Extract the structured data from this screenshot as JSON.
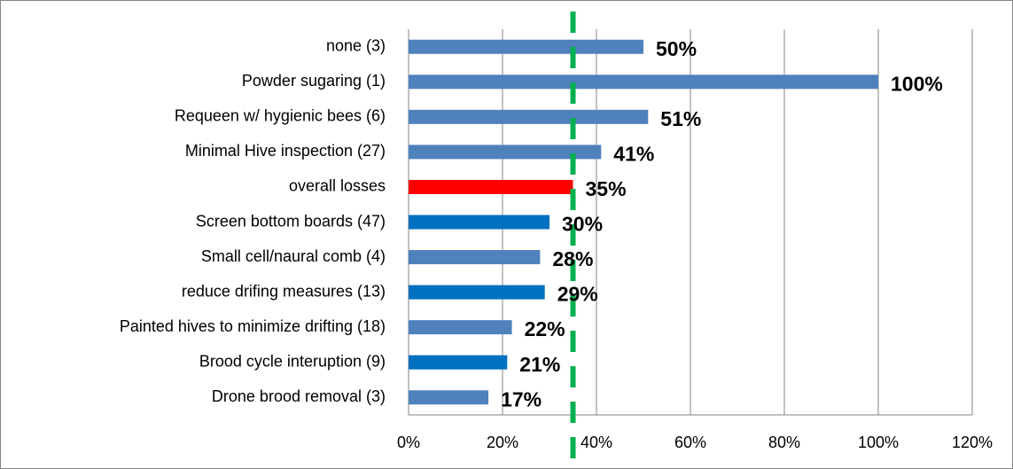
{
  "chart_data": {
    "type": "bar",
    "orientation": "horizontal",
    "categories": [
      "none (3)",
      "Powder sugaring (1)",
      "Requeen w/ hygienic bees (6)",
      "Minimal Hive inspection (27)",
      "overall losses",
      "Screen bottom boards (47)",
      "Small cell/naural comb (4)",
      "reduce drifing measures  (13)",
      "Painted hives to minimize drifting (18)",
      "Brood cycle interuption (9)",
      "Drone brood removal (3)"
    ],
    "values": [
      50,
      100,
      51,
      41,
      35,
      30,
      28,
      29,
      22,
      21,
      17
    ],
    "value_labels": [
      "50%",
      "100%",
      "51%",
      "41%",
      "35%",
      "30%",
      "28%",
      "29%",
      "22%",
      "21%",
      "17%"
    ],
    "colors": [
      "#4f81bd",
      "#4f81bd",
      "#4f81bd",
      "#4f81bd",
      "#ff0000",
      "#0070c0",
      "#4f81bd",
      "#0070c0",
      "#4f81bd",
      "#0070c0",
      "#4f81bd"
    ],
    "xlim": [
      0,
      120
    ],
    "xticks": [
      {
        "value": 0,
        "label": "0%"
      },
      {
        "value": 20,
        "label": "20%"
      },
      {
        "value": 40,
        "label": "40%"
      },
      {
        "value": 60,
        "label": "60%"
      },
      {
        "value": 80,
        "label": "80%"
      },
      {
        "value": 100,
        "label": "100%"
      },
      {
        "value": 120,
        "label": "120%"
      }
    ],
    "grid": true,
    "reference_line": {
      "value": 35,
      "color": "#00b050"
    }
  }
}
